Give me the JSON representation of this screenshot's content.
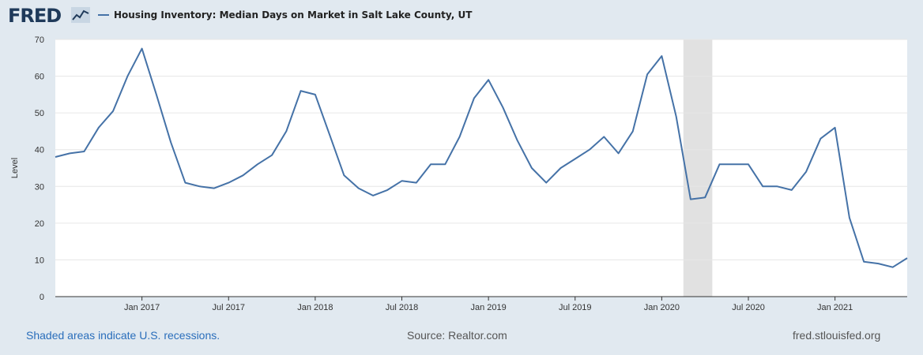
{
  "header": {
    "logo_text": "FRED",
    "legend_label": "Housing Inventory: Median Days on Market in Salt Lake County, UT"
  },
  "footer": {
    "recession_note": "Shaded areas indicate U.S. recessions.",
    "source": "Source: Realtor.com",
    "site": "fred.stlouisfed.org"
  },
  "colors": {
    "line": "#4572a7",
    "recession": "#e1e1e1",
    "background": "#e1e9f0"
  },
  "chart_data": {
    "type": "line",
    "title": "",
    "xlabel": "",
    "ylabel": "Level",
    "ylim": [
      0,
      70
    ],
    "yticks": [
      0,
      10,
      20,
      30,
      40,
      50,
      60,
      70
    ],
    "xticks": [
      "Jan 2017",
      "Jul 2017",
      "Jan 2018",
      "Jul 2018",
      "Jan 2019",
      "Jul 2019",
      "Jan 2020",
      "Jul 2020",
      "Jan 2021"
    ],
    "grid": true,
    "recession": {
      "start": "2020-03",
      "end": "2020-04"
    },
    "series": [
      {
        "name": "Housing Inventory: Median Days on Market in Salt Lake County, UT",
        "x": [
          "2016-07",
          "2016-08",
          "2016-09",
          "2016-10",
          "2016-11",
          "2016-12",
          "2017-01",
          "2017-02",
          "2017-03",
          "2017-04",
          "2017-05",
          "2017-06",
          "2017-07",
          "2017-08",
          "2017-09",
          "2017-10",
          "2017-11",
          "2017-12",
          "2018-01",
          "2018-02",
          "2018-03",
          "2018-04",
          "2018-05",
          "2018-06",
          "2018-07",
          "2018-08",
          "2018-09",
          "2018-10",
          "2018-11",
          "2018-12",
          "2019-01",
          "2019-02",
          "2019-03",
          "2019-04",
          "2019-05",
          "2019-06",
          "2019-07",
          "2019-08",
          "2019-09",
          "2019-10",
          "2019-11",
          "2019-12",
          "2020-01",
          "2020-02",
          "2020-03",
          "2020-04",
          "2020-05",
          "2020-06",
          "2020-07",
          "2020-08",
          "2020-09",
          "2020-10",
          "2020-11",
          "2020-12",
          "2021-01",
          "2021-02",
          "2021-03",
          "2021-04",
          "2021-05",
          "2021-06"
        ],
        "values": [
          38,
          39,
          39.5,
          46,
          50.5,
          60,
          67.5,
          55,
          42,
          31,
          30,
          29.5,
          31,
          33,
          36,
          38.5,
          45,
          56,
          55,
          44,
          33,
          29.5,
          27.5,
          29,
          31.5,
          31,
          36,
          36,
          43.5,
          54,
          59,
          51.5,
          42.5,
          35,
          31,
          35,
          37.5,
          40,
          43.5,
          39,
          45,
          60.5,
          65.5,
          49,
          26.5,
          27,
          36,
          36,
          36,
          30,
          30,
          29,
          34,
          43,
          46,
          21.5,
          9.5,
          9,
          8,
          10.5
        ]
      }
    ]
  }
}
